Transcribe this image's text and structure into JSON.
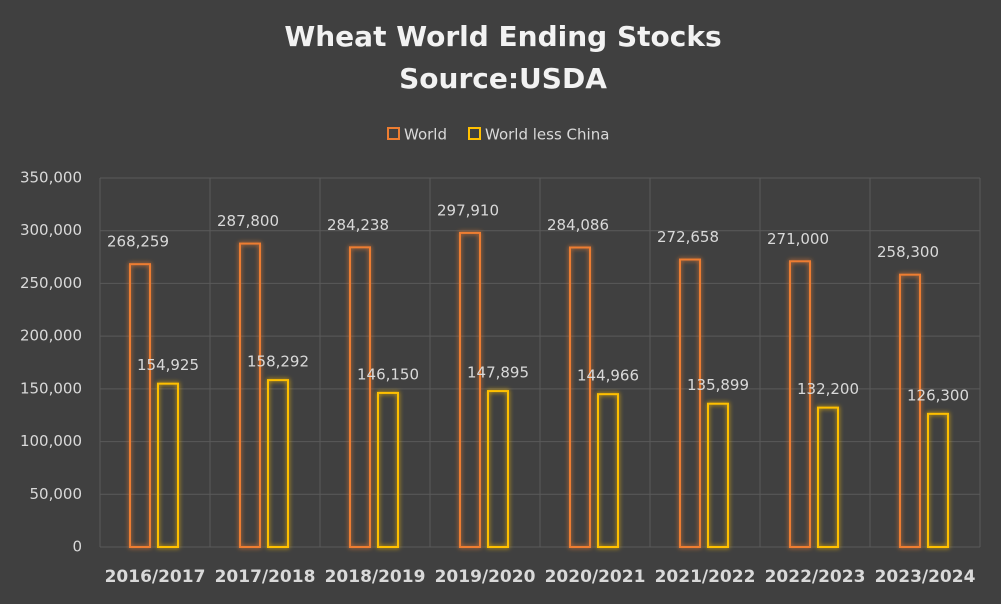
{
  "chart_data": {
    "type": "bar",
    "title": "Wheat World Ending Stocks",
    "subtitle": "Source:USDA",
    "categories": [
      "2016/2017",
      "2017/2018",
      "2018/2019",
      "2019/2020",
      "2020/2021",
      "2021/2022",
      "2022/2023",
      "2023/2024"
    ],
    "series": [
      {
        "name": "World",
        "color": "#ed7d31",
        "values": [
          268259,
          287800,
          284238,
          297910,
          284086,
          272658,
          271000,
          258300
        ],
        "value_labels": [
          "268,259",
          "287,800",
          "284,238",
          "297,910",
          "284,086",
          "272,658",
          "271,000",
          "258,300"
        ]
      },
      {
        "name": "World less China",
        "color": "#ffc000",
        "values": [
          154925,
          158292,
          146150,
          147895,
          144966,
          135899,
          132200,
          126300
        ],
        "value_labels": [
          "154,925",
          "158,292",
          "146,150",
          "147,895",
          "144,966",
          "135,899",
          "132,200",
          "126,300"
        ]
      }
    ],
    "ylim": [
      0,
      350000
    ],
    "yticks": [
      0,
      {
        "value": 50000,
        "label": "50,000"
      },
      {
        "value": 100000,
        "label": "100,000"
      },
      {
        "value": 150000,
        "label": "150,000"
      },
      {
        "value": 200000,
        "label": "200,000"
      },
      {
        "value": 250000,
        "label": "250,000"
      },
      {
        "value": 300000,
        "label": "300,000"
      },
      {
        "value": 350000,
        "label": "350,000"
      }
    ],
    "grid": true,
    "legend": "top"
  }
}
